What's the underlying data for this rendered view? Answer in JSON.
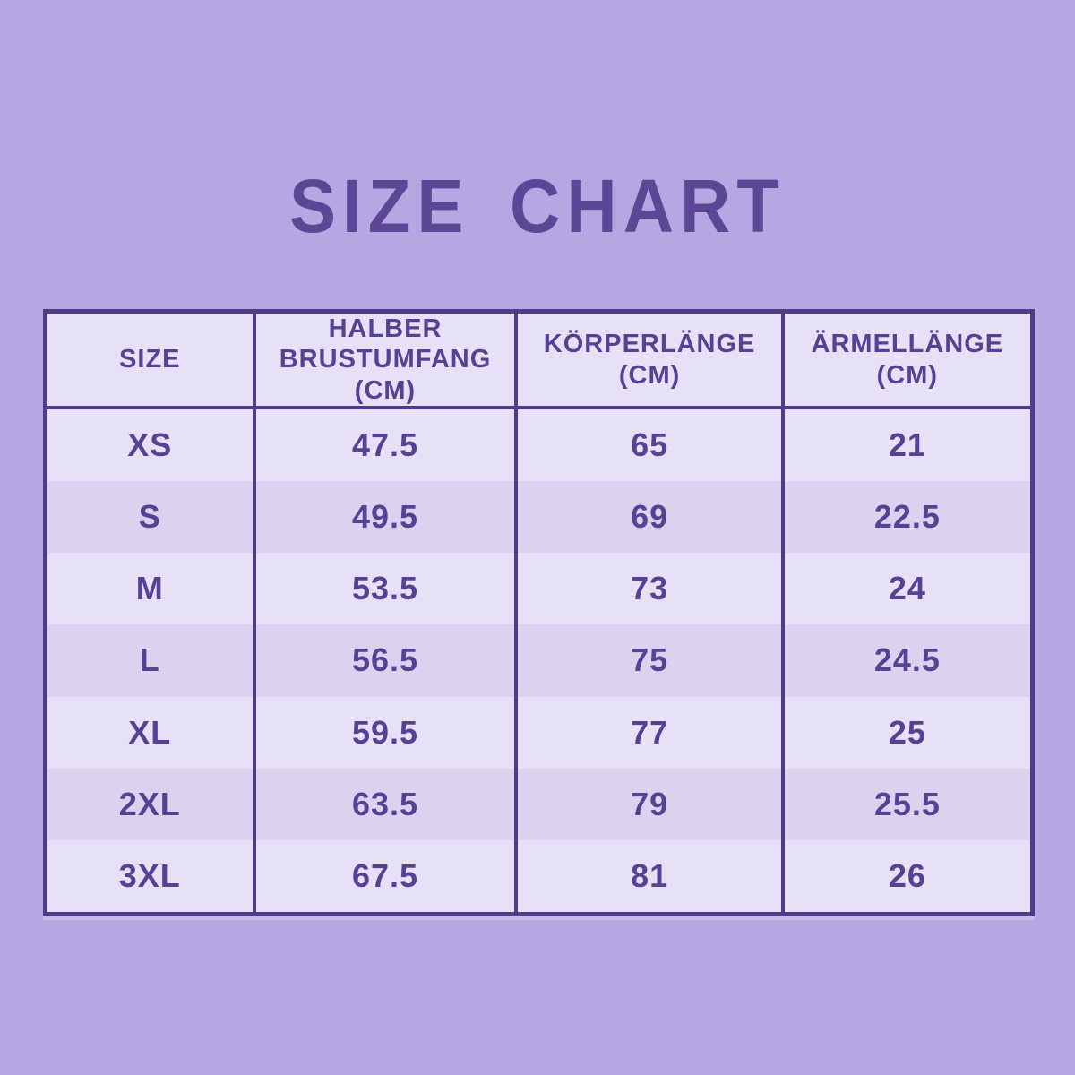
{
  "title": "SIZE CHART",
  "colors": {
    "background": "#b5a8e2",
    "border": "#4d3c87",
    "text": "#564294",
    "title": "#5b4796",
    "cell_light": "#e7e1f7",
    "cell_dark": "#dbd2f0"
  },
  "table": {
    "headers": [
      "SIZE",
      "HALBER\nBRUSTUMFANG\n(CM)",
      "KÖRPERLÄNGE\n(CM)",
      "ÄRMELLÄNGE\n(CM)"
    ],
    "rows": [
      {
        "size": "XS",
        "chest": "47.5",
        "body": "65",
        "sleeve": "21"
      },
      {
        "size": "S",
        "chest": "49.5",
        "body": "69",
        "sleeve": "22.5"
      },
      {
        "size": "M",
        "chest": "53.5",
        "body": "73",
        "sleeve": "24"
      },
      {
        "size": "L",
        "chest": "56.5",
        "body": "75",
        "sleeve": "24.5"
      },
      {
        "size": "XL",
        "chest": "59.5",
        "body": "77",
        "sleeve": "25"
      },
      {
        "size": "2XL",
        "chest": "63.5",
        "body": "79",
        "sleeve": "25.5"
      },
      {
        "size": "3XL",
        "chest": "67.5",
        "body": "81",
        "sleeve": "26"
      }
    ]
  },
  "chart_data": {
    "type": "table",
    "title": "SIZE CHART",
    "columns": [
      "SIZE",
      "HALBER BRUSTUMFANG (CM)",
      "KÖRPERLÄNGE (CM)",
      "ÄRMELLÄNGE (CM)"
    ],
    "categories": [
      "XS",
      "S",
      "M",
      "L",
      "XL",
      "2XL",
      "3XL"
    ],
    "series": [
      {
        "name": "HALBER BRUSTUMFANG (CM)",
        "values": [
          47.5,
          49.5,
          53.5,
          56.5,
          59.5,
          63.5,
          67.5
        ]
      },
      {
        "name": "KÖRPERLÄNGE (CM)",
        "values": [
          65,
          69,
          73,
          75,
          77,
          79,
          81
        ]
      },
      {
        "name": "ÄRMELLÄNGE (CM)",
        "values": [
          21,
          22.5,
          24,
          24.5,
          25,
          25.5,
          26
        ]
      }
    ]
  }
}
